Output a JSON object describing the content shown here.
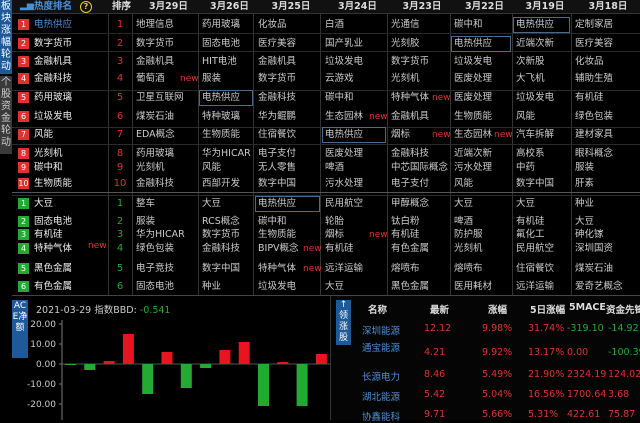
{
  "side_tabs": [
    {
      "label": "板块涨幅轮动",
      "active": true
    },
    {
      "label": "个股资金轮动",
      "active": false
    }
  ],
  "header": {
    "title": "热度排名",
    "help": "?",
    "rank": "排序",
    "dates": [
      "3月29日",
      "3月26日",
      "3月25日",
      "3月24日",
      "3月23日",
      "3月22日",
      "3月19日",
      "3月18日"
    ]
  },
  "new_label": "new",
  "colors": {
    "up": "#e03030",
    "down": "#22aa33",
    "accent": "#1e5a9a"
  },
  "top_group": {
    "ranking": [
      {
        "t": "电热供应"
      },
      {
        "t": "数字货币"
      },
      {
        "t": "金融机具"
      },
      {
        "t": "金融科技"
      },
      {
        "t": "药用玻璃"
      },
      {
        "t": "垃圾发电"
      },
      {
        "t": "风能"
      },
      {
        "t": "光刻机"
      },
      {
        "t": "碳中和"
      },
      {
        "t": "生物质能"
      }
    ],
    "columns": [
      [
        {
          "t": "地理信息"
        },
        {
          "t": "数字货币"
        },
        {
          "t": "金融机具"
        },
        {
          "t": "葡萄酒",
          "new": true
        },
        {
          "t": "卫星互联网"
        },
        {
          "t": "煤炭石油"
        },
        {
          "t": "EDA概念"
        },
        {
          "t": "药用玻璃"
        },
        {
          "t": "光刻机"
        },
        {
          "t": "金融科技"
        }
      ],
      [
        {
          "t": "药用玻璃"
        },
        {
          "t": "固态电池"
        },
        {
          "t": "HIT电池"
        },
        {
          "t": "服装"
        },
        {
          "t": "电热供应",
          "hl": true
        },
        {
          "t": "特种玻璃"
        },
        {
          "t": "生物质能"
        },
        {
          "t": "华为HICAR"
        },
        {
          "t": "风能"
        },
        {
          "t": "西部开发"
        }
      ],
      [
        {
          "t": "化妆品"
        },
        {
          "t": "医疗美容"
        },
        {
          "t": "金融机具"
        },
        {
          "t": "数字货币"
        },
        {
          "t": "金融科技"
        },
        {
          "t": "华为鲲鹏"
        },
        {
          "t": "住宿餐饮"
        },
        {
          "t": "电子支付"
        },
        {
          "t": "无人零售"
        },
        {
          "t": "数字中国"
        }
      ],
      [
        {
          "t": "白酒"
        },
        {
          "t": "国产乳业"
        },
        {
          "t": "垃圾发电"
        },
        {
          "t": "云游戏"
        },
        {
          "t": "碳中和"
        },
        {
          "t": "生态园林",
          "new": true
        },
        {
          "t": "电热供应",
          "hl": true
        },
        {
          "t": "医废处理"
        },
        {
          "t": "啤酒"
        },
        {
          "t": "污水处理"
        }
      ],
      [
        {
          "t": "光通信"
        },
        {
          "t": "光刻胶"
        },
        {
          "t": "数字货币"
        },
        {
          "t": "光刻机"
        },
        {
          "t": "特种气体",
          "new": true
        },
        {
          "t": "金融机具"
        },
        {
          "t": "烟标",
          "new": true
        },
        {
          "t": "金融科技"
        },
        {
          "t": "中芯国际概念"
        },
        {
          "t": "电子支付"
        }
      ],
      [
        {
          "t": "碳中和"
        },
        {
          "t": "电热供应",
          "hl": true
        },
        {
          "t": "垃圾发电"
        },
        {
          "t": "医废处理"
        },
        {
          "t": "医废处理"
        },
        {
          "t": "生物质能"
        },
        {
          "t": "生态园林",
          "new": true
        },
        {
          "t": "近端次新"
        },
        {
          "t": "污水处理"
        },
        {
          "t": "风能"
        }
      ],
      [
        {
          "t": "电热供应",
          "hl": true
        },
        {
          "t": "近端次新"
        },
        {
          "t": "次新股"
        },
        {
          "t": "大飞机"
        },
        {
          "t": "垃圾发电"
        },
        {
          "t": "风能"
        },
        {
          "t": "汽车拆解"
        },
        {
          "t": "高校系"
        },
        {
          "t": "中药"
        },
        {
          "t": "数字中国"
        }
      ],
      [
        {
          "t": "定制家居"
        },
        {
          "t": "医疗美容"
        },
        {
          "t": "化妆品"
        },
        {
          "t": "辅助生殖"
        },
        {
          "t": "有机硅"
        },
        {
          "t": "绿色包装"
        },
        {
          "t": "建材家具"
        },
        {
          "t": "眼科概念"
        },
        {
          "t": "服装"
        },
        {
          "t": "肝素"
        }
      ]
    ]
  },
  "bottom_group": {
    "ranking": [
      {
        "t": "大豆"
      },
      {
        "t": "固态电池"
      },
      {
        "t": "有机硅"
      },
      {
        "t": "特种气体",
        "new": true
      },
      {
        "t": "黑色金属"
      },
      {
        "t": "有色金属"
      }
    ],
    "columns": [
      [
        {
          "t": "整车"
        },
        {
          "t": "服装"
        },
        {
          "t": "华为HICAR"
        },
        {
          "t": "绿色包装"
        },
        {
          "t": "电子竞技"
        },
        {
          "t": "固态电池"
        }
      ],
      [
        {
          "t": "大豆"
        },
        {
          "t": "RCS概念"
        },
        {
          "t": "数字货币"
        },
        {
          "t": "金融科技"
        },
        {
          "t": "数字中国"
        },
        {
          "t": "种业"
        }
      ],
      [
        {
          "t": "电热供应",
          "hl": true
        },
        {
          "t": "碳中和"
        },
        {
          "t": "生物质能"
        },
        {
          "t": "BIPV概念",
          "new": true
        },
        {
          "t": "特种气体",
          "new": true
        },
        {
          "t": "垃圾发电"
        }
      ],
      [
        {
          "t": "民用航空"
        },
        {
          "t": "轮胎"
        },
        {
          "t": "烟标",
          "new": true
        },
        {
          "t": "有机硅"
        },
        {
          "t": "远洋运输"
        },
        {
          "t": "大豆"
        }
      ],
      [
        {
          "t": "甲醇概念"
        },
        {
          "t": "钛白粉"
        },
        {
          "t": "有机硅"
        },
        {
          "t": "有色金属"
        },
        {
          "t": "熔喷布"
        },
        {
          "t": "黑色金属"
        }
      ],
      [
        {
          "t": "大豆"
        },
        {
          "t": "啤酒"
        },
        {
          "t": "防护服"
        },
        {
          "t": "光刻机"
        },
        {
          "t": "熔喷布"
        },
        {
          "t": "医用耗材"
        }
      ],
      [
        {
          "t": "大豆"
        },
        {
          "t": "有机硅"
        },
        {
          "t": "氟化工"
        },
        {
          "t": "民用航空"
        },
        {
          "t": "住宿餐饮"
        },
        {
          "t": "远洋运输"
        }
      ],
      [
        {
          "t": "种业"
        },
        {
          "t": "大豆"
        },
        {
          "t": "砷化镓"
        },
        {
          "t": "深圳国资"
        },
        {
          "t": "煤炭石油"
        },
        {
          "t": "爱奇艺概念"
        }
      ]
    ]
  },
  "chart_tab": "ACE净额",
  "chart_data": {
    "type": "bar",
    "date": "2021-03-29",
    "index_label": "指数BBD:",
    "index_value": "-0.541",
    "ylim": [
      -30,
      20
    ],
    "yticks": [
      "20.00",
      "10.00",
      "0.00",
      "-10.00",
      "-20.00"
    ],
    "values": [
      -0.5,
      -3,
      1.5,
      15,
      -15,
      6,
      -12,
      -2,
      7,
      11,
      -21,
      1,
      -21,
      5,
      -0.5
    ]
  },
  "leaders": {
    "tab": "领涨股",
    "columns": [
      "名称",
      "最新",
      "涨幅",
      "5日涨幅",
      "5MACE",
      "资金先锋"
    ],
    "rows": [
      [
        "深圳能源",
        "12.12",
        "9.98%",
        "31.74%",
        "-319.10",
        "-14.92"
      ],
      [
        "通宝能源",
        "4.21",
        "9.92%",
        "13.17%",
        "0.00",
        "-100.39"
      ],
      [
        "长源电力",
        "8.46",
        "5.49%",
        "21.90%",
        "2324.19",
        "124.02"
      ],
      [
        "湖北能源",
        "5.42",
        "5.04%",
        "16.56%",
        "1700.64",
        "3.68"
      ],
      [
        "协鑫能科",
        "9.71",
        "5.66%",
        "5.31%",
        "422.61",
        "75.87"
      ]
    ]
  }
}
